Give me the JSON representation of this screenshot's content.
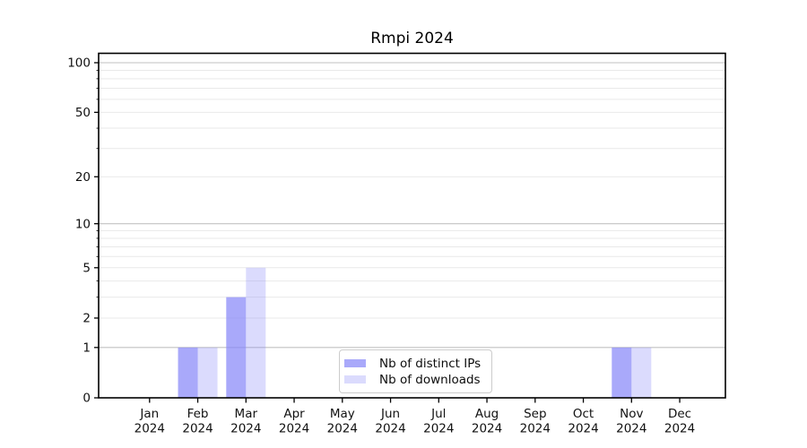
{
  "title": "Rmpi 2024",
  "chart_data": {
    "type": "bar",
    "title": "Rmpi 2024",
    "categories": [
      {
        "month": "Jan",
        "year": "2024"
      },
      {
        "month": "Feb",
        "year": "2024"
      },
      {
        "month": "Mar",
        "year": "2024"
      },
      {
        "month": "Apr",
        "year": "2024"
      },
      {
        "month": "May",
        "year": "2024"
      },
      {
        "month": "Jun",
        "year": "2024"
      },
      {
        "month": "Jul",
        "year": "2024"
      },
      {
        "month": "Aug",
        "year": "2024"
      },
      {
        "month": "Sep",
        "year": "2024"
      },
      {
        "month": "Oct",
        "year": "2024"
      },
      {
        "month": "Nov",
        "year": "2024"
      },
      {
        "month": "Dec",
        "year": "2024"
      }
    ],
    "series": [
      {
        "name": "Nb of distinct IPs",
        "color": "#8888f8",
        "opacity": 0.72,
        "values": [
          0,
          1,
          3,
          0,
          0,
          0,
          0,
          0,
          0,
          0,
          1,
          0
        ]
      },
      {
        "name": "Nb of downloads",
        "color": "#8888f8",
        "opacity": 0.3,
        "values": [
          0,
          1,
          5,
          0,
          0,
          0,
          0,
          0,
          0,
          0,
          1,
          0
        ]
      }
    ],
    "xlabel": "",
    "ylabel": "",
    "yscale": "log1p",
    "ylim": [
      0,
      113
    ],
    "ytick_values": [
      0,
      1,
      2,
      5,
      10,
      20,
      50,
      100
    ],
    "ytick_labels": [
      "0",
      "1",
      "2",
      "5",
      "10",
      "20",
      "50",
      "100"
    ],
    "major_gridlines": [
      1,
      10,
      100
    ],
    "minor_gridlines": [
      2,
      3,
      4,
      5,
      6,
      7,
      8,
      9,
      20,
      30,
      40,
      50,
      60,
      70,
      80,
      90
    ],
    "grid": true,
    "legend_position": "lower center",
    "colors": {
      "major_grid": "#c2c2c2",
      "minor_grid": "#e9e9e9",
      "spine": "#000000",
      "tick_text": "#111111",
      "background": "#ffffff"
    }
  }
}
